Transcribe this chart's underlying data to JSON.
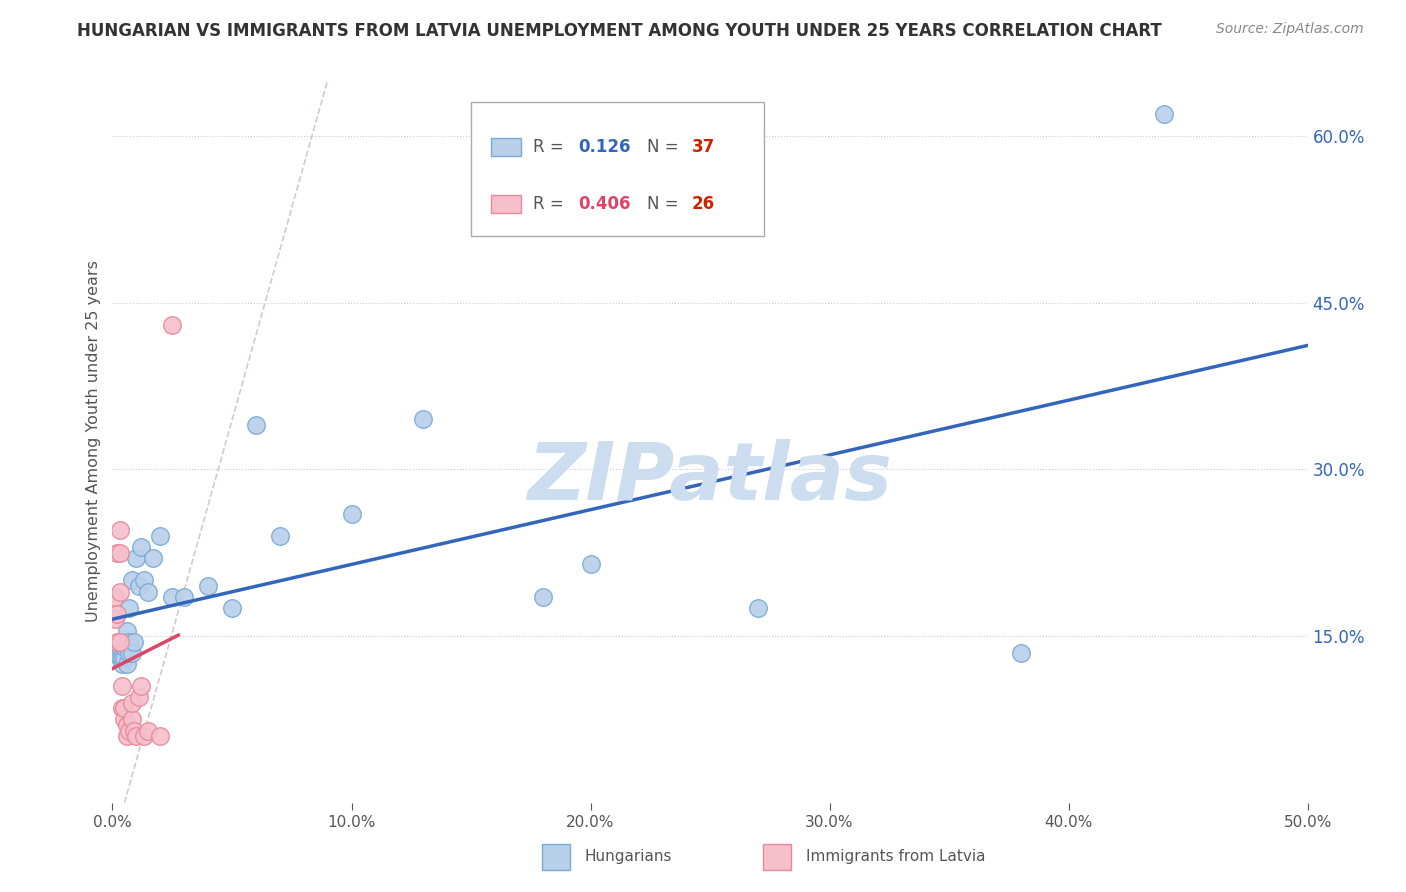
{
  "title": "HUNGARIAN VS IMMIGRANTS FROM LATVIA UNEMPLOYMENT AMONG YOUTH UNDER 25 YEARS CORRELATION CHART",
  "source": "Source: ZipAtlas.com",
  "ylabel": "Unemployment Among Youth under 25 years",
  "xlim": [
    0.0,
    0.5
  ],
  "ylim": [
    0.0,
    0.65
  ],
  "xticks": [
    0.0,
    0.1,
    0.2,
    0.3,
    0.4,
    0.5
  ],
  "xticklabels": [
    "0.0%",
    "10.0%",
    "20.0%",
    "30.0%",
    "40.0%",
    "50.0%"
  ],
  "yticks_right": [
    0.15,
    0.3,
    0.45,
    0.6
  ],
  "yticklabels_right": [
    "15.0%",
    "30.0%",
    "45.0%",
    "60.0%"
  ],
  "hungarian_color": "#b8d0ea",
  "latvian_color": "#f5bfcc",
  "hungarian_edge": "#7aaad4",
  "latvian_edge": "#e8889a",
  "trendline_blue": "#3366bb",
  "trendline_pink": "#dd4466",
  "watermark": "ZIPatlas",
  "watermark_color": "#ccddf0",
  "background_color": "#ffffff",
  "grid_color": "#cccccc",
  "n_blue_color": "#cc2200",
  "n_pink_color": "#cc2200",
  "r_blue_color": "#3366bb",
  "r_pink_color": "#dd4466",
  "hungarian_x": [
    0.002,
    0.003,
    0.003,
    0.004,
    0.004,
    0.004,
    0.005,
    0.005,
    0.006,
    0.006,
    0.006,
    0.007,
    0.007,
    0.007,
    0.008,
    0.008,
    0.009,
    0.01,
    0.011,
    0.012,
    0.013,
    0.015,
    0.017,
    0.02,
    0.025,
    0.03,
    0.04,
    0.05,
    0.06,
    0.07,
    0.1,
    0.13,
    0.18,
    0.2,
    0.27,
    0.38,
    0.44
  ],
  "hungarian_y": [
    0.135,
    0.13,
    0.14,
    0.125,
    0.13,
    0.145,
    0.13,
    0.14,
    0.125,
    0.14,
    0.155,
    0.135,
    0.145,
    0.175,
    0.2,
    0.135,
    0.145,
    0.22,
    0.195,
    0.23,
    0.2,
    0.19,
    0.22,
    0.24,
    0.185,
    0.185,
    0.195,
    0.175,
    0.34,
    0.24,
    0.26,
    0.345,
    0.185,
    0.215,
    0.175,
    0.135,
    0.62
  ],
  "latvian_x": [
    0.001,
    0.001,
    0.002,
    0.002,
    0.002,
    0.003,
    0.003,
    0.003,
    0.003,
    0.004,
    0.004,
    0.005,
    0.005,
    0.006,
    0.006,
    0.007,
    0.008,
    0.008,
    0.009,
    0.01,
    0.011,
    0.012,
    0.013,
    0.015,
    0.02,
    0.025
  ],
  "latvian_y": [
    0.165,
    0.185,
    0.225,
    0.17,
    0.145,
    0.19,
    0.225,
    0.245,
    0.145,
    0.105,
    0.085,
    0.075,
    0.085,
    0.07,
    0.06,
    0.065,
    0.075,
    0.09,
    0.065,
    0.06,
    0.095,
    0.105,
    0.06,
    0.065,
    0.06,
    0.43
  ]
}
